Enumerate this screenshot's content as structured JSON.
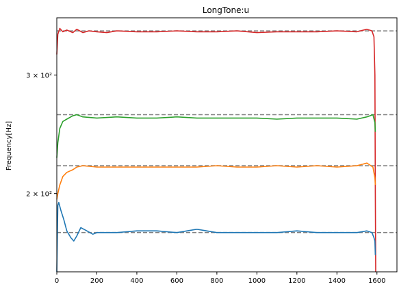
{
  "chart_data": {
    "type": "line",
    "title": "LongTone:u",
    "xlabel": "",
    "ylabel": "Frequency[Hz]",
    "xlim": [
      0,
      1700
    ],
    "ylim": [
      153,
      365
    ],
    "yscale": "log",
    "grid": false,
    "x_ticks": [
      0,
      200,
      400,
      600,
      800,
      1000,
      1200,
      1400,
      1600
    ],
    "y_ticks": [
      {
        "value": 300,
        "label": "3 × 10²"
      },
      {
        "value": 200,
        "label": "2 × 10²"
      }
    ],
    "reference_lines": [
      {
        "value": 349,
        "style": "dashed",
        "color": "#808080"
      },
      {
        "value": 262,
        "style": "dashed",
        "color": "#808080"
      },
      {
        "value": 220,
        "style": "dashed",
        "color": "#808080"
      },
      {
        "value": 175,
        "style": "dashed",
        "color": "#808080"
      }
    ],
    "series": [
      {
        "color": "#d62728",
        "x": [
          0,
          5,
          15,
          30,
          50,
          80,
          100,
          130,
          160,
          200,
          250,
          300,
          400,
          500,
          600,
          700,
          800,
          900,
          1000,
          1100,
          1200,
          1300,
          1400,
          1500,
          1550,
          1575,
          1585,
          1590,
          1592,
          1594
        ],
        "y": [
          322,
          345,
          352,
          348,
          350,
          347,
          351,
          347,
          349,
          348,
          347,
          349,
          348,
          348,
          349,
          348,
          348,
          349,
          347,
          348,
          348,
          348,
          349,
          348,
          351,
          349,
          342,
          300,
          200,
          153
        ]
      },
      {
        "color": "#2ca02c",
        "x": [
          0,
          5,
          15,
          30,
          50,
          80,
          100,
          130,
          200,
          300,
          400,
          500,
          600,
          700,
          800,
          900,
          1000,
          1100,
          1200,
          1300,
          1400,
          1500,
          1550,
          1580,
          1590,
          1592
        ],
        "y": [
          226,
          238,
          250,
          256,
          258,
          261,
          262,
          260,
          259,
          260,
          259,
          259,
          260,
          259,
          259,
          259,
          259,
          258,
          259,
          259,
          259,
          258,
          260,
          262,
          255,
          247
        ]
      },
      {
        "color": "#ff7f0e",
        "x": [
          0,
          5,
          15,
          30,
          50,
          80,
          100,
          130,
          200,
          300,
          400,
          500,
          600,
          700,
          800,
          900,
          1000,
          1100,
          1200,
          1300,
          1400,
          1500,
          1550,
          1580,
          1590,
          1592
        ],
        "y": [
          196,
          200,
          206,
          212,
          215,
          217,
          219,
          220,
          219,
          219,
          219,
          219,
          219,
          219,
          220,
          219,
          219,
          220,
          219,
          220,
          219,
          220,
          222,
          219,
          211,
          206
        ]
      },
      {
        "color": "#1f77b4",
        "x": [
          0,
          5,
          10,
          20,
          35,
          50,
          70,
          85,
          100,
          120,
          150,
          180,
          200,
          300,
          400,
          500,
          600,
          700,
          800,
          900,
          1000,
          1100,
          1200,
          1300,
          1400,
          1500,
          1550,
          1575,
          1585,
          1590,
          1592
        ],
        "y": [
          153,
          192,
          194,
          189,
          183,
          176,
          172,
          170,
          173,
          178,
          176,
          174,
          175,
          175,
          176,
          176,
          175,
          177,
          175,
          175,
          175,
          175,
          176,
          175,
          175,
          175,
          176,
          175,
          172,
          170,
          162
        ]
      }
    ]
  }
}
